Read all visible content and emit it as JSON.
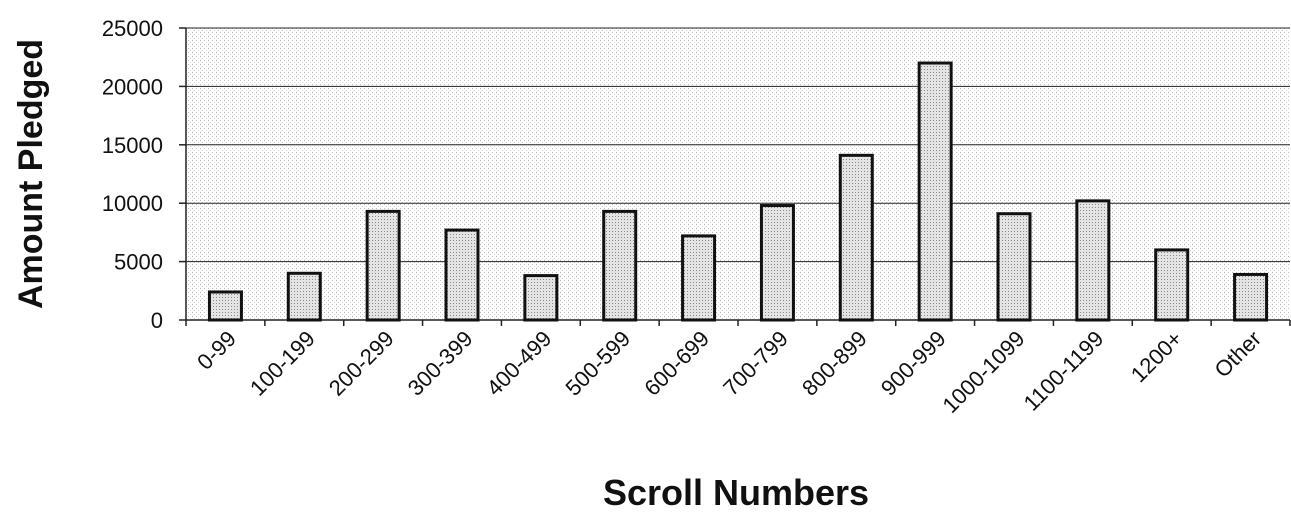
{
  "chart_data": {
    "type": "bar",
    "categories": [
      "0-99",
      "100-199",
      "200-299",
      "300-399",
      "400-499",
      "500-599",
      "600-699",
      "700-799",
      "800-899",
      "900-999",
      "1000-1099",
      "1100-1199",
      "1200+",
      "Other"
    ],
    "values": [
      2400,
      4000,
      9300,
      7700,
      3800,
      9300,
      7200,
      9800,
      14100,
      22000,
      9100,
      10200,
      6000,
      3900
    ],
    "title": "",
    "xlabel": "Scroll Numbers",
    "ylabel": "Amount Pledged",
    "ylim": [
      0,
      25000
    ],
    "yticks": [
      0,
      5000,
      10000,
      15000,
      20000,
      25000
    ],
    "grid": true,
    "legend": "none",
    "colors": {
      "bar_fill": "#dddddd",
      "bar_stroke": "#111111",
      "background": "#f2f2f2"
    }
  }
}
